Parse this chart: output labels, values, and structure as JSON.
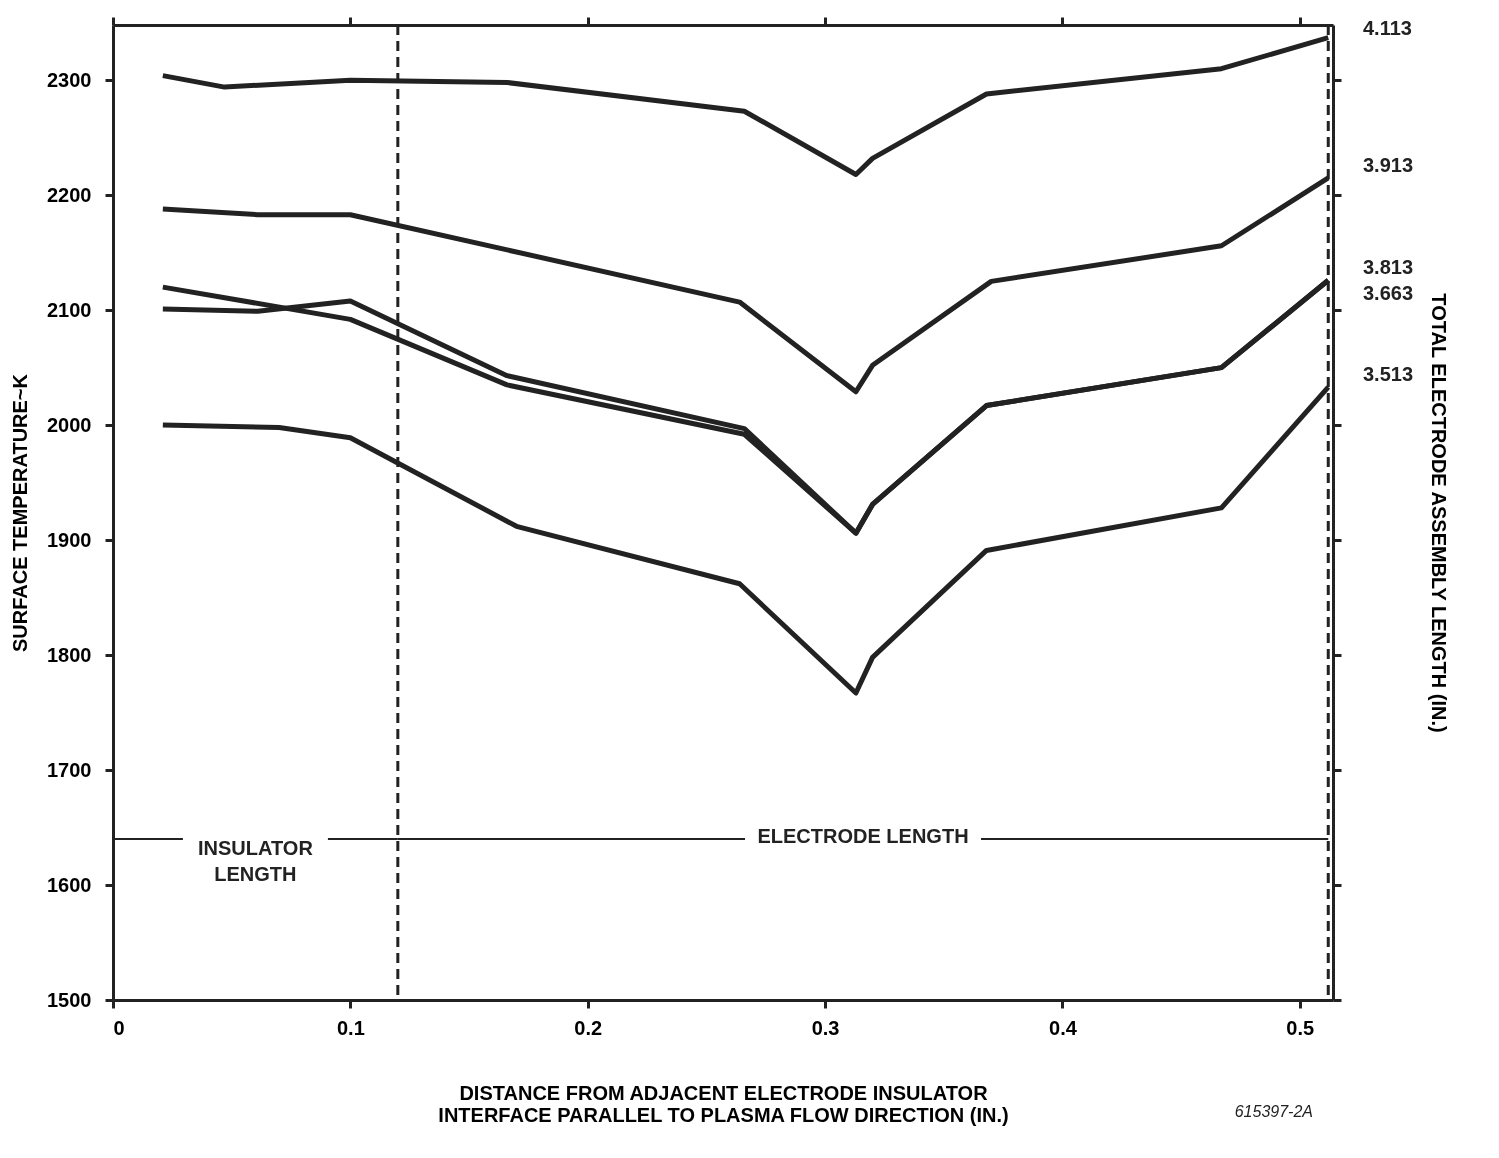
{
  "chart_data": {
    "type": "line",
    "xlabel": "DISTANCE FROM ADJACENT ELECTRODE INSULATOR\nINTERFACE PARALLEL TO PLASMA FLOW DIRECTION (IN.)",
    "ylabel": "SURFACE TEMPERATURE~K",
    "y2label": "TOTAL ELECTRODE ASSEMBLY LENGTH (IN.)",
    "xlim": [
      0,
      0.514
    ],
    "ylim": [
      1500,
      2348
    ],
    "xticks": [
      0,
      0.1,
      0.2,
      0.3,
      0.4,
      0.5
    ],
    "yticks": [
      1500,
      1600,
      1700,
      1800,
      1900,
      2000,
      2100,
      2200,
      2300
    ],
    "grid": false,
    "marker": "none",
    "line_style": "solid",
    "series": [
      {
        "name": "4.113",
        "color": "#222222",
        "x": [
          0.021,
          0.047,
          0.1,
          0.166,
          0.266,
          0.313,
          0.32,
          0.368,
          0.467,
          0.512
        ],
        "values": [
          2304,
          2294,
          2300,
          2298,
          2273,
          2218,
          2232,
          2288,
          2310,
          2337
        ]
      },
      {
        "name": "3.913",
        "color": "#222222",
        "x": [
          0.021,
          0.061,
          0.1,
          0.264,
          0.313,
          0.32,
          0.37,
          0.467,
          0.512
        ],
        "values": [
          2188,
          2183,
          2183,
          2107,
          2029,
          2052,
          2125,
          2156,
          2215
        ]
      },
      {
        "name": "3.813",
        "color": "#222222",
        "x": [
          0.021,
          0.1,
          0.166,
          0.266,
          0.313,
          0.32,
          0.368,
          0.467,
          0.512
        ],
        "values": [
          2120,
          2092,
          2035,
          1992,
          1906,
          1931,
          2017,
          2050,
          2126
        ]
      },
      {
        "name": "3.663",
        "color": "#222222",
        "x": [
          0.021,
          0.061,
          0.1,
          0.166,
          0.266,
          0.313,
          0.32,
          0.368,
          0.467,
          0.512
        ],
        "values": [
          2101,
          2099,
          2108,
          2043,
          1997,
          1906,
          1931,
          2017,
          2050,
          2126
        ]
      },
      {
        "name": "3.513",
        "color": "#222222",
        "x": [
          0.021,
          0.07,
          0.1,
          0.17,
          0.264,
          0.313,
          0.32,
          0.368,
          0.467,
          0.512
        ],
        "values": [
          2000,
          1998,
          1989,
          1912,
          1862,
          1767,
          1798,
          1891,
          1928,
          2033
        ]
      }
    ],
    "ref_lines": [
      {
        "axis": "x",
        "value": 0.12,
        "color": "#222222",
        "line_style": "dashed"
      },
      {
        "axis": "x",
        "value": 0.512,
        "color": "#222222",
        "line_style": "dashed"
      }
    ],
    "annotations": [
      {
        "text": "INSULATOR\nLENGTH",
        "x": 0.12,
        "y": 1640
      },
      {
        "text": "ELECTRODE LENGTH",
        "x": 0.512,
        "y": 1640
      },
      "615397-2A"
    ]
  }
}
